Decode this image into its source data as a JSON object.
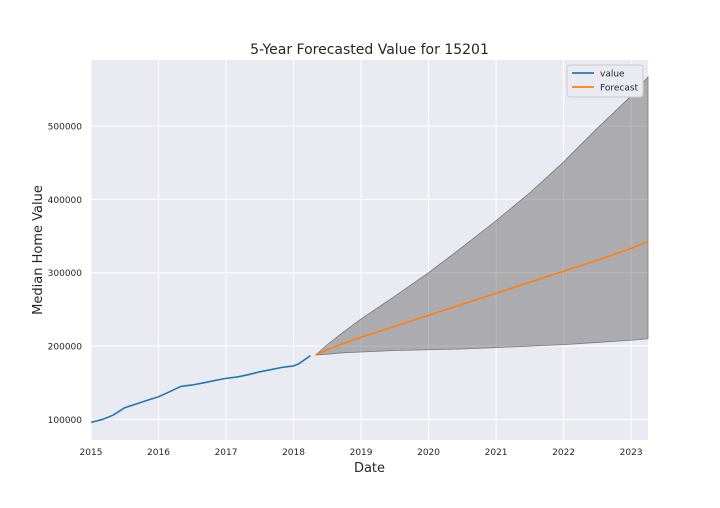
{
  "chart_data": {
    "type": "line",
    "title": "5-Year Forecasted Value for 15201",
    "xlabel": "Date",
    "ylabel": "Median Home Value",
    "xlim": [
      2015.0,
      2023.25
    ],
    "ylim": [
      72000,
      590000
    ],
    "x_ticks": [
      2015,
      2016,
      2017,
      2018,
      2019,
      2020,
      2021,
      2022,
      2023
    ],
    "x_tick_labels": [
      "2015",
      "2016",
      "2017",
      "2018",
      "2019",
      "2020",
      "2021",
      "2022",
      "2023"
    ],
    "y_ticks": [
      100000,
      200000,
      300000,
      400000,
      500000
    ],
    "y_tick_labels": [
      "100000",
      "200000",
      "300000",
      "400000",
      "500000"
    ],
    "grid": true,
    "legend_position": "top-right",
    "series": [
      {
        "name": "value",
        "color": "#1f77b4",
        "x": [
          2015.0,
          2015.17,
          2015.33,
          2015.5,
          2015.67,
          2015.83,
          2016.0,
          2016.17,
          2016.33,
          2016.5,
          2016.67,
          2016.83,
          2017.0,
          2017.17,
          2017.33,
          2017.5,
          2017.67,
          2017.83,
          2018.0,
          2018.08,
          2018.25
        ],
        "values": [
          96000,
          100000,
          106000,
          116000,
          121000,
          126000,
          131000,
          138000,
          145000,
          147000,
          150000,
          153000,
          156000,
          158000,
          161000,
          165000,
          168000,
          171000,
          173000,
          176000,
          187000
        ]
      },
      {
        "name": "Forecast",
        "color": "#ff7f0e",
        "x": [
          2018.33,
          2018.5,
          2018.75,
          2019.0,
          2019.5,
          2020.0,
          2020.5,
          2021.0,
          2021.5,
          2022.0,
          2022.5,
          2023.0,
          2023.25
        ],
        "values": [
          188000,
          195000,
          204000,
          212000,
          227000,
          242000,
          257000,
          272000,
          287000,
          302000,
          317000,
          333000,
          343000
        ]
      }
    ],
    "confidence_band": {
      "color": "#555555",
      "x": [
        2018.33,
        2018.5,
        2018.75,
        2019.0,
        2019.5,
        2020.0,
        2020.5,
        2021.0,
        2021.5,
        2022.0,
        2022.5,
        2023.0,
        2023.25
      ],
      "lower": [
        188000,
        189000,
        191000,
        192000,
        194000,
        195000,
        196000,
        198000,
        200000,
        202000,
        205000,
        208000,
        210000
      ],
      "upper": [
        188000,
        202000,
        220000,
        237000,
        268000,
        300000,
        335000,
        371000,
        409000,
        451000,
        497000,
        541000,
        567000
      ]
    }
  }
}
